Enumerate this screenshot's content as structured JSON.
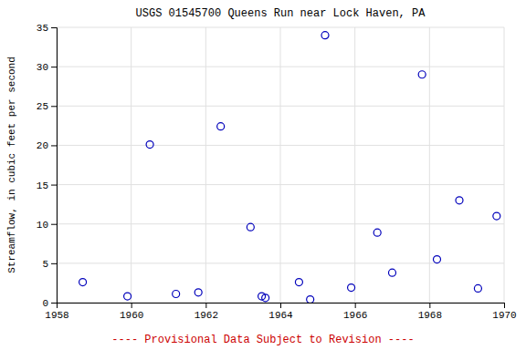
{
  "chart_data": {
    "type": "scatter",
    "title": "USGS 01545700 Queens Run near Lock Haven, PA",
    "ylabel": "Streamflow, in cubic feet per second",
    "x": [
      1958.7,
      1959.9,
      1960.5,
      1961.2,
      1961.8,
      1962.4,
      1963.2,
      1963.5,
      1963.6,
      1964.5,
      1964.8,
      1965.2,
      1965.9,
      1966.6,
      1967.0,
      1967.8,
      1968.2,
      1968.8,
      1969.3,
      1969.8
    ],
    "values": [
      2.6,
      0.8,
      20.1,
      1.1,
      1.3,
      22.4,
      9.6,
      0.8,
      0.6,
      2.6,
      0.4,
      34.0,
      1.9,
      8.9,
      3.8,
      29.0,
      5.5,
      13.0,
      1.8,
      11.0
    ],
    "color": "#0000BB",
    "marker": "open-circle",
    "xlim": [
      1958,
      1970
    ],
    "ylim": [
      0,
      35
    ],
    "xticks": [
      1958,
      1960,
      1962,
      1964,
      1966,
      1968,
      1970
    ],
    "yticks": [
      0,
      5,
      10,
      15,
      20,
      25,
      30,
      35
    ],
    "grid": true,
    "annotation": {
      "text": "---- Provisional Data Subject to Revision ----",
      "color": "#cc0000"
    }
  }
}
